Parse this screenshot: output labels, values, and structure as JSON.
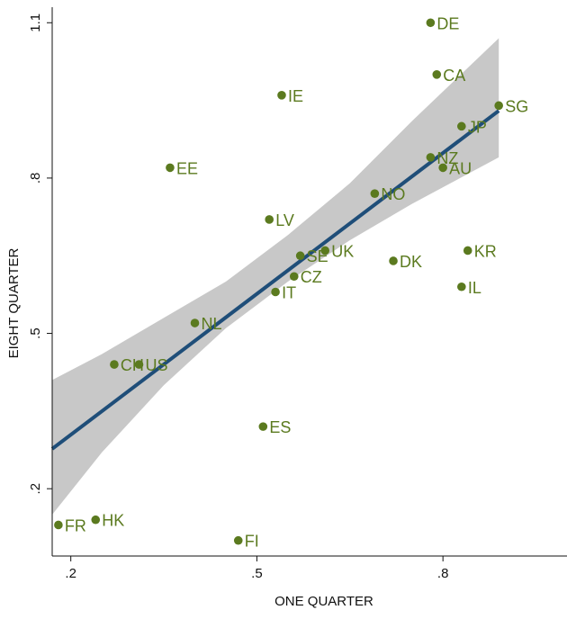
{
  "chart_data": {
    "type": "scatter",
    "title": "",
    "xlabel": "ONE QUARTER",
    "ylabel": "EIGHT QUARTER",
    "xlim": [
      0.17,
      1.0
    ],
    "ylim": [
      0.07,
      1.13
    ],
    "x_ticks": [
      0.2,
      0.5,
      0.8
    ],
    "x_tick_labels": [
      ".2",
      ".5",
      ".8"
    ],
    "y_ticks": [
      0.2,
      0.5,
      0.8,
      1.1
    ],
    "y_tick_labels": [
      ".2",
      ".5",
      ".8",
      "1.1"
    ],
    "grid": false,
    "legend": "none",
    "colors": {
      "points": "#5b7a1f",
      "labels": "#5b7a1f",
      "fit_line": "#1f4e79",
      "confidence_band": "#c8c8c8"
    },
    "points": [
      {
        "label": "DE",
        "x": 0.78,
        "y": 1.1
      },
      {
        "label": "CA",
        "x": 0.79,
        "y": 1.0
      },
      {
        "label": "IE",
        "x": 0.54,
        "y": 0.96
      },
      {
        "label": "SG",
        "x": 0.89,
        "y": 0.94
      },
      {
        "label": "JP",
        "x": 0.83,
        "y": 0.9
      },
      {
        "label": "NZ",
        "x": 0.78,
        "y": 0.84
      },
      {
        "label": "AU",
        "x": 0.8,
        "y": 0.82
      },
      {
        "label": "EE",
        "x": 0.36,
        "y": 0.82
      },
      {
        "label": "NO",
        "x": 0.69,
        "y": 0.77
      },
      {
        "label": "LV",
        "x": 0.52,
        "y": 0.72
      },
      {
        "label": "KR",
        "x": 0.84,
        "y": 0.66
      },
      {
        "label": "SE",
        "x": 0.57,
        "y": 0.65
      },
      {
        "label": "UK",
        "x": 0.61,
        "y": 0.66
      },
      {
        "label": "DK",
        "x": 0.72,
        "y": 0.64
      },
      {
        "label": "CZ",
        "x": 0.56,
        "y": 0.61
      },
      {
        "label": "IL",
        "x": 0.83,
        "y": 0.59
      },
      {
        "label": "IT",
        "x": 0.53,
        "y": 0.58
      },
      {
        "label": "NL",
        "x": 0.4,
        "y": 0.52
      },
      {
        "label": "CH",
        "x": 0.27,
        "y": 0.44
      },
      {
        "label": "US",
        "x": 0.31,
        "y": 0.44
      },
      {
        "label": "ES",
        "x": 0.51,
        "y": 0.32
      },
      {
        "label": "FR",
        "x": 0.18,
        "y": 0.13
      },
      {
        "label": "HK",
        "x": 0.24,
        "y": 0.14
      },
      {
        "label": "FI",
        "x": 0.47,
        "y": 0.1
      }
    ],
    "fit": {
      "x_start": 0.17,
      "x_end": 0.89,
      "y_start": 0.277,
      "y_end": 0.93
    },
    "confidence_band": [
      {
        "x": 0.17,
        "lower": 0.15,
        "upper": 0.41
      },
      {
        "x": 0.25,
        "lower": 0.27,
        "upper": 0.46
      },
      {
        "x": 0.35,
        "lower": 0.4,
        "upper": 0.53
      },
      {
        "x": 0.45,
        "lower": 0.51,
        "upper": 0.6
      },
      {
        "x": 0.55,
        "lower": 0.6,
        "upper": 0.69
      },
      {
        "x": 0.65,
        "lower": 0.68,
        "upper": 0.79
      },
      {
        "x": 0.75,
        "lower": 0.75,
        "upper": 0.91
      },
      {
        "x": 0.89,
        "lower": 0.84,
        "upper": 1.07
      }
    ]
  }
}
